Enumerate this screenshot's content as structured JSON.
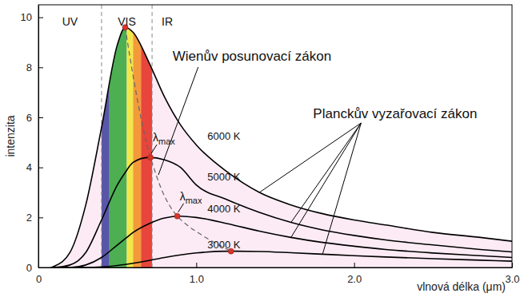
{
  "chart_data": {
    "type": "line",
    "x_label": "vlnová délka (μm)",
    "y_label": "intenzita",
    "x": [
      0.08,
      0.1,
      0.2,
      0.3,
      0.4,
      0.5,
      0.55,
      0.6,
      0.7,
      0.8,
      0.9,
      1.0,
      1.2,
      1.4,
      1.6,
      1.8,
      2.0,
      2.2,
      2.5,
      2.8,
      3.0
    ],
    "xlim": [
      0,
      3
    ],
    "ylim": [
      0,
      10.5
    ],
    "xticks": [
      0,
      {
        "value": 1,
        "label": "1.0"
      },
      {
        "value": 2,
        "label": "2.0"
      },
      {
        "value": 3,
        "label": "3.0"
      }
    ],
    "yticks": [
      0,
      2,
      4,
      6,
      8,
      10
    ],
    "series": [
      {
        "name": "6000 K",
        "color": "#000000",
        "values": [
          0,
          0.05,
          0.6,
          2.5,
          5.6,
          8.9,
          9.6,
          9.4,
          8.2,
          6.8,
          5.7,
          4.9,
          3.8,
          3.0,
          2.5,
          2.15,
          1.9,
          1.7,
          1.4,
          1.2,
          1.05
        ]
      },
      {
        "name": "5000 K",
        "color": "#000000",
        "values": [
          0,
          0,
          0.1,
          0.6,
          1.9,
          3.3,
          3.8,
          4.2,
          4.4,
          4.3,
          4.0,
          3.3,
          2.7,
          2.2,
          1.8,
          1.5,
          1.28,
          1.1,
          0.9,
          0.72,
          0.62
        ]
      },
      {
        "name": "4000 K",
        "color": "#000000",
        "values": [
          0,
          0,
          0,
          0.1,
          0.4,
          0.9,
          1.15,
          1.4,
          1.75,
          1.98,
          2.05,
          2.0,
          1.75,
          1.45,
          1.2,
          1.0,
          0.85,
          0.72,
          0.58,
          0.47,
          0.4
        ]
      },
      {
        "name": "3000 K",
        "color": "#000000",
        "values": [
          0,
          0,
          0,
          0,
          0.02,
          0.08,
          0.12,
          0.17,
          0.28,
          0.4,
          0.5,
          0.58,
          0.65,
          0.64,
          0.59,
          0.53,
          0.47,
          0.42,
          0.35,
          0.29,
          0.25
        ]
      },
      {
        "name": "Wienův posunovací zákon",
        "color": "#666666",
        "line_style": "dashed",
        "marker": "circle",
        "x": [
          0.55,
          0.71,
          0.88,
          1.22
        ],
        "values": [
          9.6,
          4.4,
          2.05,
          0.65
        ]
      }
    ],
    "regions": [
      {
        "label": "UV",
        "xlim": [
          0,
          0.4
        ]
      },
      {
        "label": "VIS",
        "xlim": [
          0.4,
          0.72
        ]
      },
      {
        "label": "IR",
        "xlim": [
          0.72,
          3
        ]
      }
    ],
    "bands": {
      "edges": [
        0.4,
        0.45,
        0.56,
        0.6,
        0.65,
        0.72
      ],
      "colors": [
        "#5856a8",
        "#4daf52",
        "#f2e64a",
        "#f39a3a",
        "#e8453c"
      ]
    },
    "annotations": [
      "λmax",
      "λmax",
      "Planckův vyzařovací zákon"
    ]
  }
}
